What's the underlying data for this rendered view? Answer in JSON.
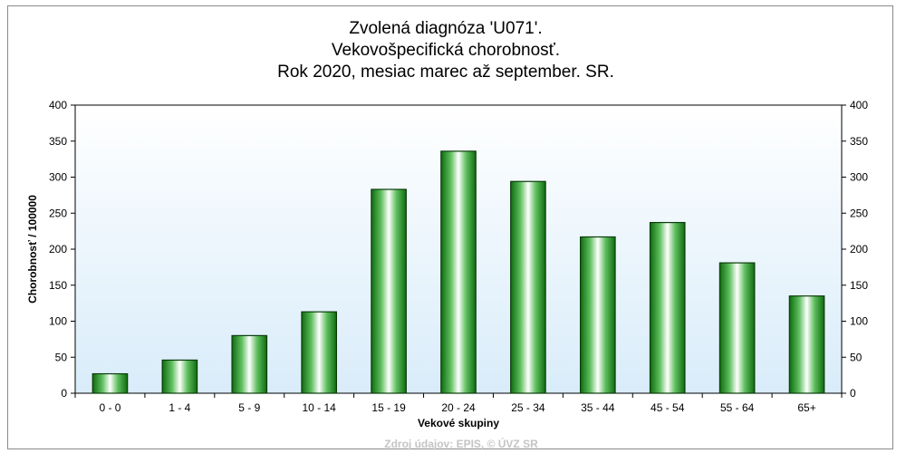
{
  "chart_data": {
    "type": "bar",
    "title_lines": [
      "Zvolená diagnóza 'U071'.",
      "Vekovošpecifická chorobnosť.",
      "Rok 2020, mesiac marec až september. SR."
    ],
    "xlabel": "Vekové skupiny",
    "ylabel": "Chorobnosť / 100000",
    "categories": [
      "0 - 0",
      "1 - 4",
      "5 - 9",
      "10 - 14",
      "15 - 19",
      "20 - 24",
      "25 - 34",
      "35 - 44",
      "45 - 54",
      "55 - 64",
      "65+"
    ],
    "values": [
      27,
      46,
      80,
      113,
      283,
      336,
      294,
      217,
      237,
      181,
      135
    ],
    "ylim": [
      0,
      400
    ],
    "yticks": [
      0,
      50,
      100,
      150,
      200,
      250,
      300,
      350,
      400
    ],
    "right_axis": true,
    "grid": false,
    "bar_color": "#1e8a1e",
    "plot_background": "#e6f2fc",
    "source_note": "Zdroj údajov: EPIS, © ÚVZ SR"
  }
}
